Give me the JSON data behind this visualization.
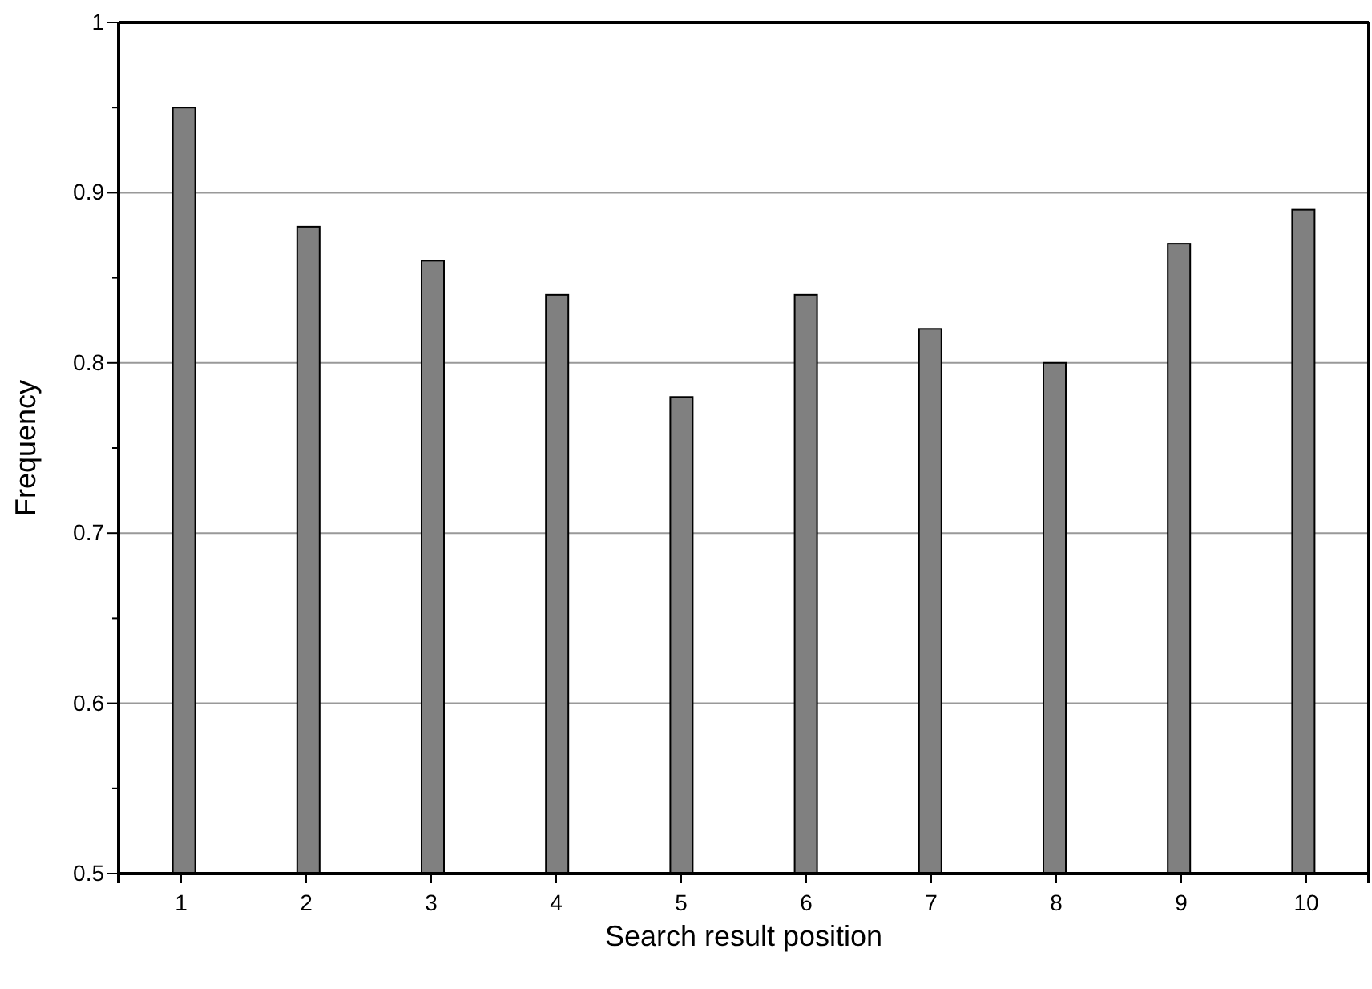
{
  "chart_data": {
    "type": "bar",
    "xlabel": "Search result position",
    "ylabel": "Frequency",
    "categories": [
      "1",
      "2",
      "3",
      "4",
      "5",
      "6",
      "7",
      "8",
      "9",
      "10"
    ],
    "values": [
      0.95,
      0.88,
      0.86,
      0.84,
      0.78,
      0.84,
      0.82,
      0.8,
      0.87,
      0.89
    ],
    "color": "#808080",
    "ylim": [
      0.5,
      1
    ],
    "yticks": [
      0.5,
      {
        "value": 0.55,
        "label": null
      },
      0.6,
      {
        "value": 0.65,
        "label": null
      },
      0.7,
      {
        "value": 0.75,
        "label": null
      },
      0.8,
      {
        "value": 0.85,
        "label": null
      },
      0.9,
      {
        "value": 0.95,
        "label": null
      },
      1
    ],
    "grid": "y"
  }
}
